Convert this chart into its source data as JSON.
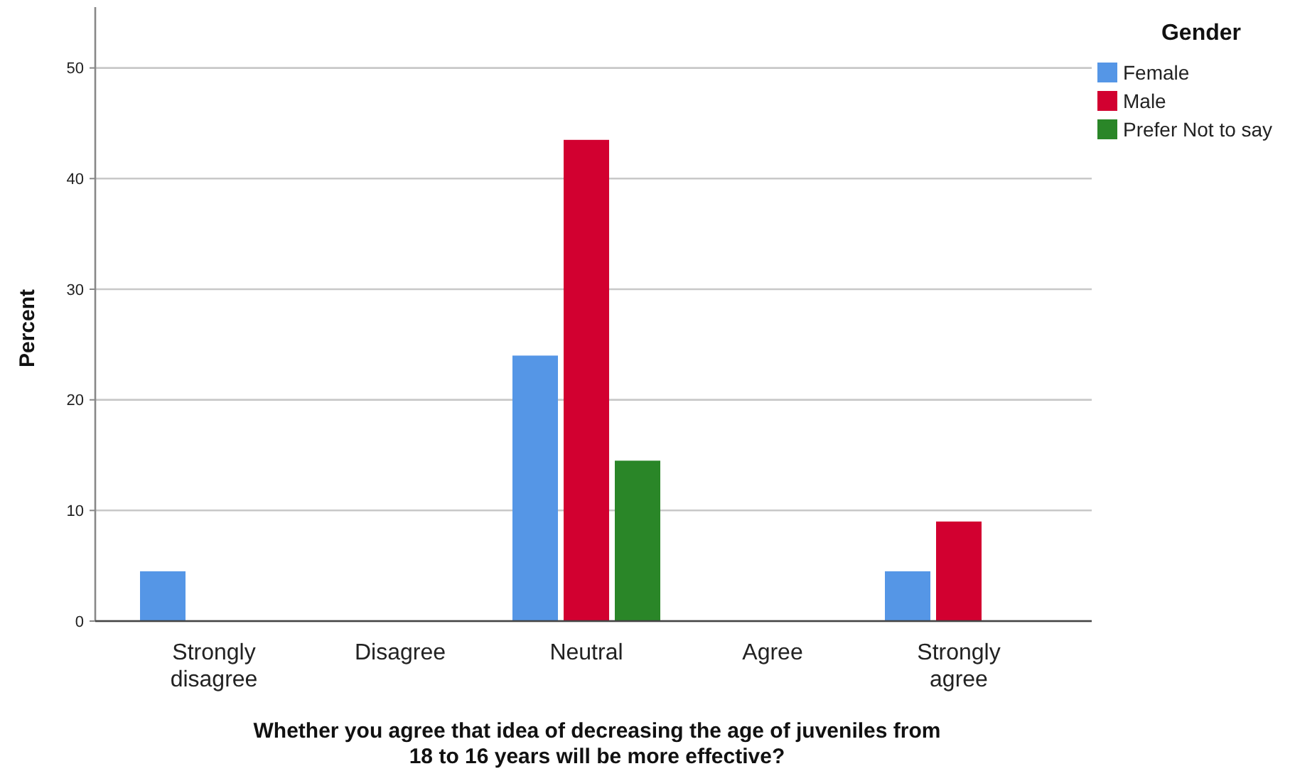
{
  "chart_data": {
    "type": "bar",
    "xlabel": "Whether you agree that idea of decreasing the age of juveniles from\n18 to 16 years will be more effective?",
    "ylabel": "Percent",
    "legend_title": "Gender",
    "categories": [
      "Strongly\ndisagree",
      "Disagree",
      "Neutral",
      "Agree",
      "Strongly\nagree"
    ],
    "series": [
      {
        "name": "Female",
        "color": "#5596e6",
        "values": [
          4.5,
          null,
          24,
          null,
          4.5
        ]
      },
      {
        "name": "Male",
        "color": "#d20030",
        "values": [
          null,
          null,
          43.5,
          null,
          9
        ]
      },
      {
        "name": "Prefer Not to say",
        "color": "#2a8628",
        "values": [
          null,
          null,
          14.5,
          null,
          null
        ]
      }
    ],
    "ylim": [
      0,
      55.5
    ],
    "yticks": [
      0,
      10,
      20,
      30,
      40,
      50
    ],
    "grid": "y",
    "legend": "top right"
  }
}
